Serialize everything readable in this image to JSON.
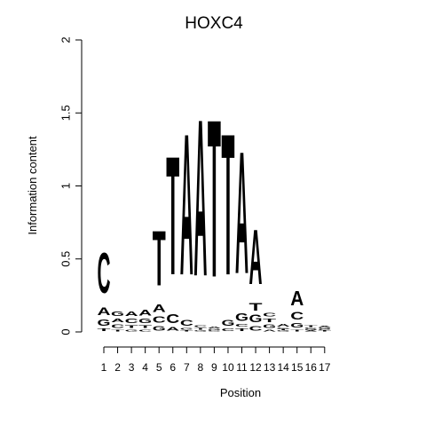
{
  "chart_data": {
    "type": "sequence-logo",
    "title": "HOXC4",
    "xlabel": "Position",
    "ylabel": "Information content",
    "ylim": [
      0,
      2
    ],
    "yticks": [
      0,
      0.5,
      1,
      1.5,
      2
    ],
    "ytick_labels": [
      "0",
      "0.5",
      "1",
      "1.5",
      "2"
    ],
    "xticks": [
      1,
      2,
      3,
      4,
      5,
      6,
      7,
      8,
      9,
      10,
      11,
      12,
      13,
      14,
      15,
      16,
      17
    ],
    "xtick_labels": [
      "1",
      "2",
      "3",
      "4",
      "5",
      "6",
      "7",
      "8",
      "9",
      "10",
      "11",
      "12",
      "13",
      "14",
      "15",
      "16",
      "17"
    ],
    "letter_colors": {
      "A": "#00e000",
      "C": "#0000ee",
      "G": "#ffa500",
      "T": "#ff0000"
    },
    "positions": [
      {
        "pos": 1,
        "letters": [
          {
            "base": "T",
            "height": 0.03
          },
          {
            "base": "G",
            "height": 0.07
          },
          {
            "base": "A",
            "height": 0.08
          },
          {
            "base": "C",
            "height": 0.44
          }
        ]
      },
      {
        "pos": 2,
        "letters": [
          {
            "base": "T",
            "height": 0.02
          },
          {
            "base": "C",
            "height": 0.04
          },
          {
            "base": "A",
            "height": 0.04
          },
          {
            "base": "G",
            "height": 0.05
          }
        ]
      },
      {
        "pos": 3,
        "letters": [
          {
            "base": "G",
            "height": 0.02
          },
          {
            "base": "T",
            "height": 0.03
          },
          {
            "base": "C",
            "height": 0.05
          },
          {
            "base": "A",
            "height": 0.05
          }
        ]
      },
      {
        "pos": 4,
        "letters": [
          {
            "base": "C",
            "height": 0.02
          },
          {
            "base": "T",
            "height": 0.03
          },
          {
            "base": "G",
            "height": 0.05
          },
          {
            "base": "A",
            "height": 0.06
          }
        ]
      },
      {
        "pos": 5,
        "letters": [
          {
            "base": "G",
            "height": 0.05
          },
          {
            "base": "C",
            "height": 0.07
          },
          {
            "base": "A",
            "height": 0.08
          },
          {
            "base": "T",
            "height": 0.6
          }
        ]
      },
      {
        "pos": 6,
        "letters": [
          {
            "base": "A",
            "height": 0.04
          },
          {
            "base": "C",
            "height": 0.1
          },
          {
            "base": "T",
            "height": 1.3
          }
        ]
      },
      {
        "pos": 7,
        "letters": [
          {
            "base": "T",
            "height": 0.01
          },
          {
            "base": "G",
            "height": 0.02
          },
          {
            "base": "C",
            "height": 0.06
          },
          {
            "base": "A",
            "height": 1.55
          }
        ]
      },
      {
        "pos": 8,
        "letters": [
          {
            "base": "G",
            "height": 0.01
          },
          {
            "base": "T",
            "height": 0.02
          },
          {
            "base": "C",
            "height": 0.02
          },
          {
            "base": "A",
            "height": 1.72
          }
        ]
      },
      {
        "pos": 9,
        "letters": [
          {
            "base": "C",
            "height": 0.01
          },
          {
            "base": "G",
            "height": 0.01
          },
          {
            "base": "A",
            "height": 0.02
          },
          {
            "base": "T",
            "height": 1.73
          }
        ]
      },
      {
        "pos": 10,
        "letters": [
          {
            "base": "C",
            "height": 0.03
          },
          {
            "base": "G",
            "height": 0.06
          },
          {
            "base": "T",
            "height": 1.55
          }
        ]
      },
      {
        "pos": 11,
        "letters": [
          {
            "base": "T",
            "height": 0.03
          },
          {
            "base": "C",
            "height": 0.03
          },
          {
            "base": "G",
            "height": 0.08
          },
          {
            "base": "A",
            "height": 1.34
          }
        ]
      },
      {
        "pos": 12,
        "letters": [
          {
            "base": "C",
            "height": 0.05
          },
          {
            "base": "G",
            "height": 0.08
          },
          {
            "base": "T",
            "height": 0.08
          },
          {
            "base": "A",
            "height": 0.6
          }
        ]
      },
      {
        "pos": 13,
        "letters": [
          {
            "base": "A",
            "height": 0.02
          },
          {
            "base": "G",
            "height": 0.04
          },
          {
            "base": "T",
            "height": 0.04
          },
          {
            "base": "C",
            "height": 0.04
          }
        ]
      },
      {
        "pos": 14,
        "letters": [
          {
            "base": "G",
            "height": 0.01
          },
          {
            "base": "T",
            "height": 0.01
          },
          {
            "base": "C",
            "height": 0.01
          },
          {
            "base": "A",
            "height": 0.03
          }
        ]
      },
      {
        "pos": 15,
        "letters": [
          {
            "base": "T",
            "height": 0.02
          },
          {
            "base": "G",
            "height": 0.05
          },
          {
            "base": "C",
            "height": 0.08
          },
          {
            "base": "A",
            "height": 0.16
          }
        ]
      },
      {
        "pos": 16,
        "letters": [
          {
            "base": "A",
            "height": 0.01
          },
          {
            "base": "G",
            "height": 0.01
          },
          {
            "base": "C",
            "height": 0.01
          },
          {
            "base": "T",
            "height": 0.02
          }
        ]
      },
      {
        "pos": 17,
        "letters": [
          {
            "base": "T",
            "height": 0.01
          },
          {
            "base": "C",
            "height": 0.01
          },
          {
            "base": "G",
            "height": 0.01
          },
          {
            "base": "A",
            "height": 0.01
          }
        ]
      }
    ]
  }
}
